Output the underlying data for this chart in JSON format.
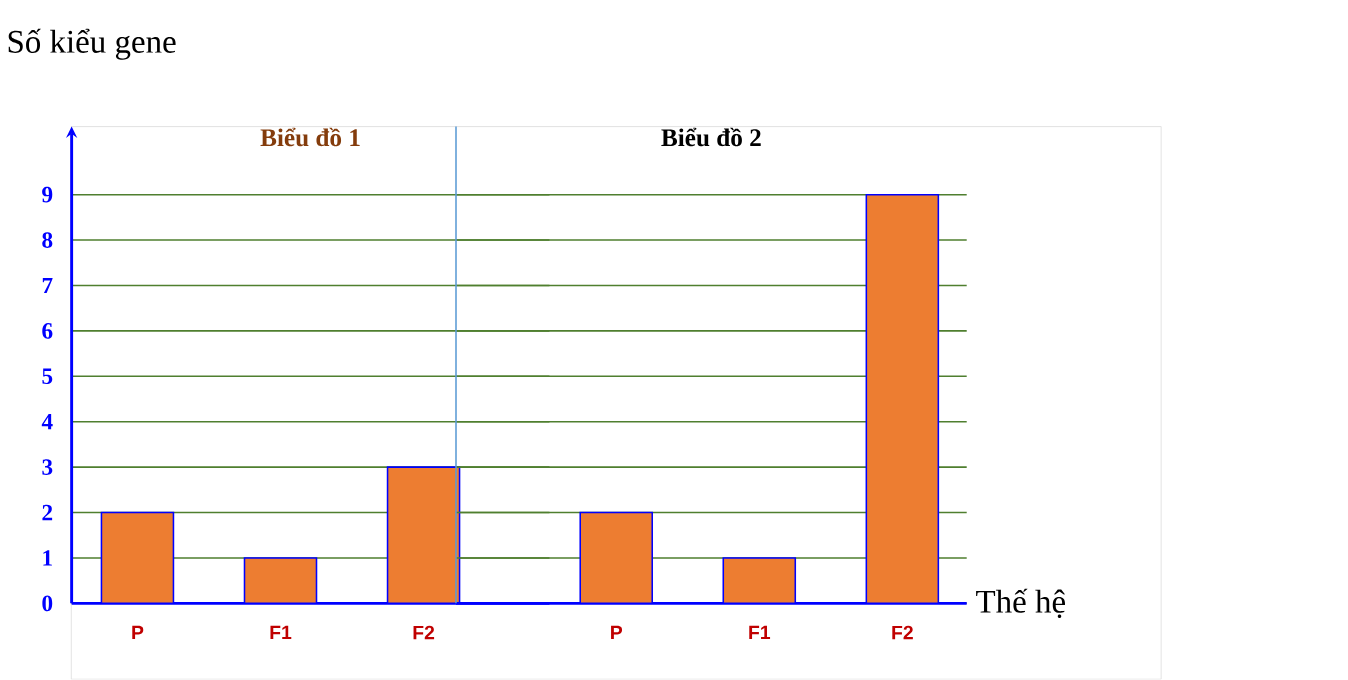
{
  "chart_data": [
    {
      "type": "bar",
      "title": "Biểu đồ 1",
      "ylabel": "Số kiểu gene",
      "categories": [
        "P",
        "F1",
        "F2"
      ],
      "values": [
        2,
        1,
        3
      ],
      "color": "#ed7d31",
      "ylim": [
        0,
        10.5
      ],
      "yticks": [
        0,
        1,
        2,
        3,
        4,
        5,
        6,
        7,
        8,
        9
      ],
      "grid": "y"
    },
    {
      "type": "bar",
      "title": "Biểu đồ 2",
      "xlabel": "Thế hệ",
      "categories": [
        "P",
        "F1",
        "F2"
      ],
      "values": [
        2,
        1,
        9
      ],
      "color": "#ed7d31",
      "ylim": [
        0,
        10.5
      ],
      "yticks": [
        0,
        1,
        2,
        3,
        4,
        5,
        6,
        7,
        8,
        9
      ],
      "grid": "y",
      "tick_labels": "x"
    }
  ]
}
